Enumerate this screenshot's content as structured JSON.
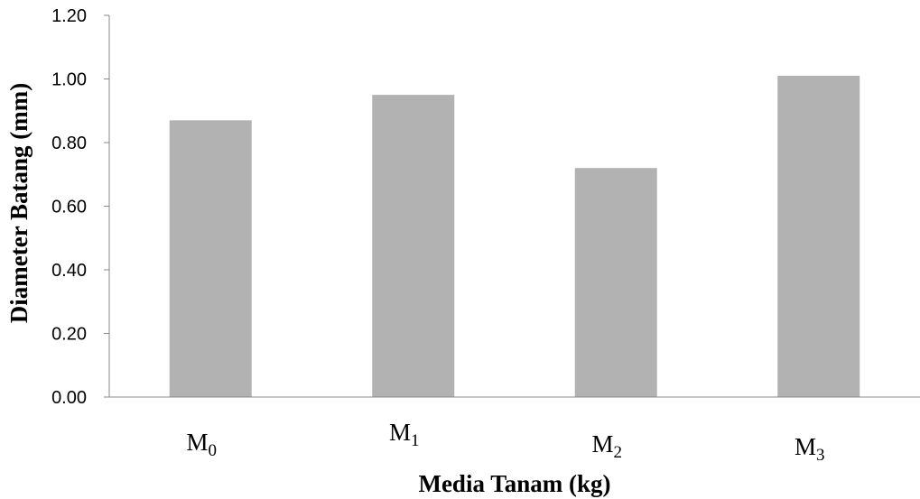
{
  "chart_data": {
    "type": "bar",
    "categories": [
      {
        "base": "M",
        "sub": "0"
      },
      {
        "base": "M",
        "sub": "1"
      },
      {
        "base": "M",
        "sub": "2"
      },
      {
        "base": "M",
        "sub": "3"
      }
    ],
    "values": [
      0.87,
      0.95,
      0.72,
      1.01
    ],
    "xlabel": "Media Tanam (kg)",
    "ylabel": "Diameter Batang (mm)",
    "ylim": [
      0,
      1.2
    ],
    "yticks": [
      "0.00",
      "0.20",
      "0.40",
      "0.60",
      "0.80",
      "1.00",
      "1.20"
    ],
    "bar_color": "#b2b2b2",
    "grid": false,
    "legend": "none"
  }
}
